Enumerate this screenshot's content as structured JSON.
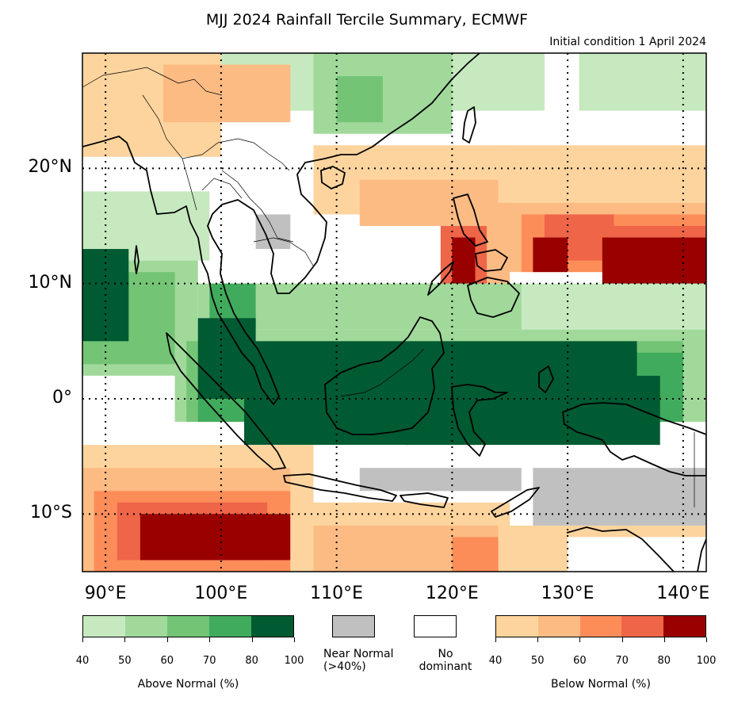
{
  "title": "MJJ 2024 Rainfall Tercile Summary, ECMWF",
  "subtitle": "Initial condition 1 April 2024",
  "axes": {
    "lat_labels": [
      {
        "text": "20°N",
        "lat": 20
      },
      {
        "text": "10°N",
        "lat": 10
      },
      {
        "text": "0°",
        "lat": 0
      },
      {
        "text": "10°S",
        "lat": -10
      }
    ],
    "lon_labels": [
      {
        "text": "90°E",
        "lon": 90
      },
      {
        "text": "100°E",
        "lon": 100
      },
      {
        "text": "110°E",
        "lon": 110
      },
      {
        "text": "120°E",
        "lon": 120
      },
      {
        "text": "130°E",
        "lon": 130
      },
      {
        "text": "140°E",
        "lon": 140
      }
    ],
    "lon_range": [
      88,
      142
    ],
    "lat_range": [
      -15,
      30
    ],
    "gridlines": "dotted"
  },
  "colors": {
    "above_normal": [
      "#c7e9c0",
      "#a1d99b",
      "#74c476",
      "#41ab5d",
      "#005a32"
    ],
    "near_normal": "#c0c0c0",
    "no_dominant": "#ffffff",
    "below_normal": [
      "#fdd49e",
      "#fdbb84",
      "#fc8d59",
      "#ef6548",
      "#990000"
    ]
  },
  "legend": {
    "above": {
      "caption": "Above Normal (%)",
      "ticks": [
        "40",
        "50",
        "60",
        "70",
        "80",
        "100"
      ]
    },
    "near": {
      "caption_line1": "Near Normal",
      "caption_line2": "(>40%)"
    },
    "none": {
      "caption_line1": "No",
      "caption_line2": "dominant"
    },
    "below": {
      "caption": "Below Normal (%)",
      "ticks": [
        "40",
        "50",
        "60",
        "70",
        "80",
        "100"
      ]
    }
  },
  "chart_data": {
    "type": "heatmap",
    "title": "MJJ 2024 Rainfall Tercile Summary, ECMWF",
    "subtitle": "Initial condition 1 April 2024",
    "category_legend": {
      "A1": "Above Normal 40-50%",
      "A2": "Above Normal 50-60%",
      "A3": "Above Normal 60-70%",
      "A4": "Above Normal 70-80%",
      "A5": "Above Normal 80-100%",
      "B1": "Below Normal 40-50%",
      "B2": "Below Normal 50-60%",
      "B3": "Below Normal 60-70%",
      "B4": "Below Normal 70-80%",
      "B5": "Below Normal 80-100%",
      "N": "Near Normal (>40%)",
      "W": "No dominant"
    },
    "regions": [
      {
        "lon": [
          88,
          142
        ],
        "lat": [
          -15,
          30
        ],
        "cat": "W"
      },
      {
        "lon": [
          100,
          128
        ],
        "lat": [
          25,
          30
        ],
        "cat": "A1"
      },
      {
        "lon": [
          108,
          120
        ],
        "lat": [
          23,
          30
        ],
        "cat": "A2"
      },
      {
        "lon": [
          110,
          114
        ],
        "lat": [
          24,
          28
        ],
        "cat": "A3"
      },
      {
        "lon": [
          131,
          142
        ],
        "lat": [
          25,
          30
        ],
        "cat": "A1"
      },
      {
        "lon": [
          88,
          100
        ],
        "lat": [
          21,
          30
        ],
        "cat": "B1"
      },
      {
        "lon": [
          95,
          106
        ],
        "lat": [
          24,
          29
        ],
        "cat": "B2"
      },
      {
        "lon": [
          100,
          108
        ],
        "lat": [
          17,
          23
        ],
        "cat": "W"
      },
      {
        "lon": [
          101,
          108
        ],
        "lat": [
          12,
          17
        ],
        "cat": "W"
      },
      {
        "lon": [
          103,
          106
        ],
        "lat": [
          13,
          16
        ],
        "cat": "N"
      },
      {
        "lon": [
          108,
          125
        ],
        "lat": [
          16,
          22
        ],
        "cat": "B1"
      },
      {
        "lon": [
          112,
          124
        ],
        "lat": [
          15,
          19
        ],
        "cat": "B2"
      },
      {
        "lon": [
          124,
          142
        ],
        "lat": [
          16,
          22
        ],
        "cat": "B1"
      },
      {
        "lon": [
          124,
          142
        ],
        "lat": [
          11,
          17
        ],
        "cat": "B2"
      },
      {
        "lon": [
          126,
          142
        ],
        "lat": [
          11,
          16
        ],
        "cat": "B3"
      },
      {
        "lon": [
          128,
          134
        ],
        "lat": [
          12,
          16
        ],
        "cat": "B4"
      },
      {
        "lon": [
          134,
          142
        ],
        "lat": [
          10,
          15
        ],
        "cat": "B4"
      },
      {
        "lon": [
          127,
          130
        ],
        "lat": [
          11,
          14
        ],
        "cat": "B5"
      },
      {
        "lon": [
          133,
          142
        ],
        "lat": [
          10,
          14
        ],
        "cat": "B5"
      },
      {
        "lon": [
          118,
          125
        ],
        "lat": [
          9,
          17
        ],
        "cat": "B2"
      },
      {
        "lon": [
          119,
          123
        ],
        "lat": [
          9,
          15
        ],
        "cat": "B4"
      },
      {
        "lon": [
          120,
          122
        ],
        "lat": [
          9,
          14
        ],
        "cat": "B5"
      },
      {
        "lon": [
          112,
          119
        ],
        "lat": [
          8,
          15
        ],
        "cat": "W"
      },
      {
        "lon": [
          88,
          99
        ],
        "lat": [
          12,
          18
        ],
        "cat": "A1"
      },
      {
        "lon": [
          88,
          98
        ],
        "lat": [
          2,
          12
        ],
        "cat": "A2"
      },
      {
        "lon": [
          88,
          96
        ],
        "lat": [
          3,
          11
        ],
        "cat": "A3"
      },
      {
        "lon": [
          88,
          92
        ],
        "lat": [
          5,
          13
        ],
        "cat": "A5"
      },
      {
        "lon": [
          88,
          98
        ],
        "lat": [
          -3,
          2
        ],
        "cat": "W"
      },
      {
        "lon": [
          98,
          142
        ],
        "lat": [
          5,
          10
        ],
        "cat": "A1"
      },
      {
        "lon": [
          98,
          126
        ],
        "lat": [
          6,
          10
        ],
        "cat": "A2"
      },
      {
        "lon": [
          99,
          103
        ],
        "lat": [
          6,
          10
        ],
        "cat": "A4"
      },
      {
        "lon": [
          96,
          142
        ],
        "lat": [
          -2,
          6
        ],
        "cat": "A2"
      },
      {
        "lon": [
          97,
          140
        ],
        "lat": [
          -2,
          5
        ],
        "cat": "A3"
      },
      {
        "lon": [
          98,
          140
        ],
        "lat": [
          -2,
          4
        ],
        "cat": "A4"
      },
      {
        "lon": [
          98,
          103
        ],
        "lat": [
          0,
          7
        ],
        "cat": "A5"
      },
      {
        "lon": [
          102,
          136
        ],
        "lat": [
          -4,
          5
        ],
        "cat": "A5"
      },
      {
        "lon": [
          116,
          126
        ],
        "lat": [
          -5,
          0
        ],
        "cat": "A5"
      },
      {
        "lon": [
          126,
          138
        ],
        "lat": [
          -5,
          2
        ],
        "cat": "A5"
      },
      {
        "lon": [
          88,
          142
        ],
        "lat": [
          -7,
          -4
        ],
        "cat": "W"
      },
      {
        "lon": [
          88,
          108
        ],
        "lat": [
          -15,
          -4
        ],
        "cat": "B1"
      },
      {
        "lon": [
          88,
          106
        ],
        "lat": [
          -15,
          -6
        ],
        "cat": "B2"
      },
      {
        "lon": [
          89,
          106
        ],
        "lat": [
          -15,
          -8
        ],
        "cat": "B3"
      },
      {
        "lon": [
          91,
          104
        ],
        "lat": [
          -14,
          -9
        ],
        "cat": "B4"
      },
      {
        "lon": [
          93,
          106
        ],
        "lat": [
          -14,
          -10
        ],
        "cat": "B5"
      },
      {
        "lon": [
          106,
          125
        ],
        "lat": [
          -15,
          -9
        ],
        "cat": "B1"
      },
      {
        "lon": [
          108,
          124
        ],
        "lat": [
          -15,
          -11
        ],
        "cat": "B2"
      },
      {
        "lon": [
          120,
          128
        ],
        "lat": [
          -15,
          -12
        ],
        "cat": "B3"
      },
      {
        "lon": [
          124,
          142
        ],
        "lat": [
          -15,
          -11
        ],
        "cat": "B1"
      },
      {
        "lon": [
          127,
          142
        ],
        "lat": [
          -11,
          -6
        ],
        "cat": "N"
      },
      {
        "lon": [
          112,
          126
        ],
        "lat": [
          -8,
          -6
        ],
        "cat": "N"
      },
      {
        "lon": [
          130,
          142
        ],
        "lat": [
          -15,
          -12
        ],
        "cat": "W"
      }
    ]
  }
}
